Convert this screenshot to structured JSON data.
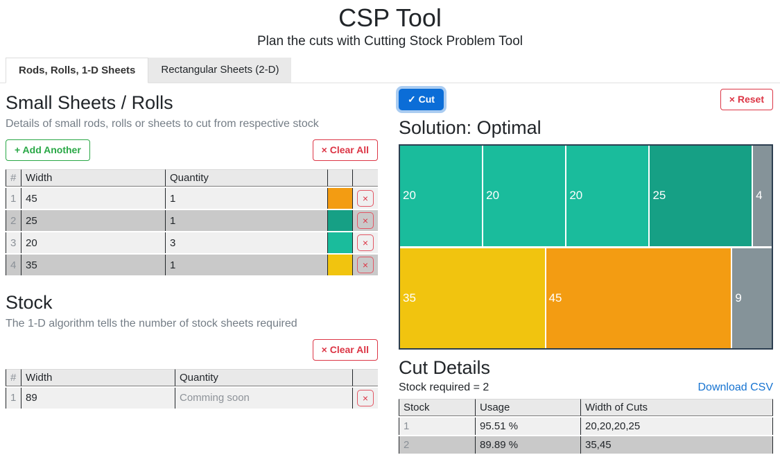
{
  "header": {
    "title": "CSP Tool",
    "subtitle": "Plan the cuts with Cutting Stock Problem Tool"
  },
  "tabs": [
    {
      "label": "Rods, Rolls, 1-D Sheets",
      "active": true
    },
    {
      "label": "Rectangular Sheets (2-D)",
      "active": false
    }
  ],
  "small_sheets": {
    "heading": "Small Sheets / Rolls",
    "description": "Details of small rods, rolls or sheets to cut from respective stock",
    "add_button": "+ Add Another",
    "clear_button": "× Clear All",
    "columns": {
      "num": "#",
      "width": "Width",
      "quantity": "Quantity"
    },
    "delete_label": "×",
    "rows": [
      {
        "num": "1",
        "width": "45",
        "quantity": "1",
        "color": "#f39c12"
      },
      {
        "num": "2",
        "width": "25",
        "quantity": "1",
        "color": "#16a085"
      },
      {
        "num": "3",
        "width": "20",
        "quantity": "3",
        "color": "#1abc9c"
      },
      {
        "num": "4",
        "width": "35",
        "quantity": "1",
        "color": "#f1c40f"
      }
    ]
  },
  "stock": {
    "heading": "Stock",
    "description": "The 1-D algorithm tells the number of stock sheets required",
    "clear_button": "× Clear All",
    "columns": {
      "num": "#",
      "width": "Width",
      "quantity": "Quantity"
    },
    "delete_label": "×",
    "rows": [
      {
        "num": "1",
        "width": "89",
        "quantity_placeholder": "Comming soon"
      }
    ]
  },
  "solution": {
    "cut_button": "✓ Cut",
    "reset_button": "× Reset",
    "heading": "Solution: Optimal"
  },
  "chart_data": {
    "type": "bar",
    "title": "Solution: Optimal",
    "stock_width": 89,
    "legend_position": "none",
    "waste_color": "#859399",
    "rows": [
      {
        "stock": 1,
        "segments": [
          {
            "label": "20",
            "value": 20,
            "color": "#1abc9c",
            "waste": false
          },
          {
            "label": "20",
            "value": 20,
            "color": "#1abc9c",
            "waste": false
          },
          {
            "label": "20",
            "value": 20,
            "color": "#1abc9c",
            "waste": false
          },
          {
            "label": "25",
            "value": 25,
            "color": "#16a085",
            "waste": false
          },
          {
            "label": "4",
            "value": 4,
            "color": "#859399",
            "waste": true
          }
        ]
      },
      {
        "stock": 2,
        "segments": [
          {
            "label": "35",
            "value": 35,
            "color": "#f1c40f",
            "waste": false
          },
          {
            "label": "45",
            "value": 45,
            "color": "#f39c12",
            "waste": false
          },
          {
            "label": "9",
            "value": 9,
            "color": "#859399",
            "waste": true
          }
        ]
      }
    ]
  },
  "cut_details": {
    "heading": "Cut Details",
    "stock_required": "Stock required = 2",
    "download_link": "Download CSV",
    "columns": [
      "Stock",
      "Usage",
      "Width of Cuts"
    ],
    "rows": [
      {
        "stock": "1",
        "usage": "95.51 %",
        "cuts": "20,20,20,25"
      },
      {
        "stock": "2",
        "usage": "89.89 %",
        "cuts": "35,45"
      }
    ]
  },
  "colors": {
    "primary_button": "#0b6dd7",
    "add_button_green": "#28a745",
    "danger_red": "#dc3545",
    "link_blue": "#1673d1",
    "chart_border": "#2c3e50"
  }
}
